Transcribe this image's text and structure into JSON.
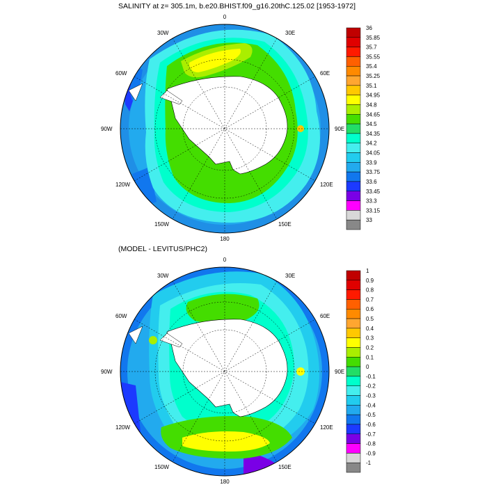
{
  "top_panel": {
    "title": "SALINITY at z= 305.1m, b.e20.BHIST.f09_g16.20thC.125.02 [1953-1972]",
    "longitude_labels": {
      "n": "0",
      "nne": "30E",
      "ene": "60E",
      "e": "90E",
      "ese": "120E",
      "sse": "150E",
      "s": "180",
      "ssw": "150W",
      "wsw": "120W",
      "w": "90W",
      "wnw": "60W",
      "nnw": "30W"
    },
    "colorbar_labels": [
      "36",
      "35.85",
      "35.7",
      "35.55",
      "35.4",
      "35.25",
      "35.1",
      "34.95",
      "34.8",
      "34.65",
      "34.5",
      "34.35",
      "34.2",
      "34.05",
      "33.9",
      "33.75",
      "33.6",
      "33.45",
      "33.3",
      "33.15",
      "33"
    ],
    "colorbar_colors": [
      "#c00000",
      "#e00000",
      "#ff1a00",
      "#ff6000",
      "#ff8a00",
      "#ffa630",
      "#ffc800",
      "#ffff00",
      "#aaee00",
      "#44dd00",
      "#22dd66",
      "#00ffcc",
      "#44eeee",
      "#22ccee",
      "#22aaee",
      "#1177ee",
      "#1c3aff",
      "#7a00e6",
      "#ff00ff",
      "#d8d8d8",
      "#888888"
    ]
  },
  "bottom_panel": {
    "title": "(MODEL - LEVITUS/PHC2)",
    "longitude_labels": {
      "n": "0",
      "nne": "30E",
      "ene": "60E",
      "e": "90E",
      "ese": "120E",
      "sse": "150E",
      "s": "180",
      "ssw": "150W",
      "wsw": "120W",
      "w": "90W",
      "wnw": "60W",
      "nnw": "30W"
    },
    "colorbar_labels": [
      "1",
      "0.9",
      "0.8",
      "0.7",
      "0.6",
      "0.5",
      "0.4",
      "0.3",
      "0.2",
      "0.1",
      "0",
      "-0.1",
      "-0.2",
      "-0.3",
      "-0.4",
      "-0.5",
      "-0.6",
      "-0.7",
      "-0.8",
      "-0.9",
      "-1"
    ],
    "colorbar_colors": [
      "#c00000",
      "#e00000",
      "#ff1a00",
      "#ff6000",
      "#ff8a00",
      "#ffa630",
      "#ffc800",
      "#ffff00",
      "#aaee00",
      "#44dd00",
      "#22dd66",
      "#00ffcc",
      "#44eeee",
      "#22ccee",
      "#22aaee",
      "#1177ee",
      "#1c3aff",
      "#7a00e6",
      "#ff00ff",
      "#d8d8d8",
      "#888888"
    ]
  }
}
